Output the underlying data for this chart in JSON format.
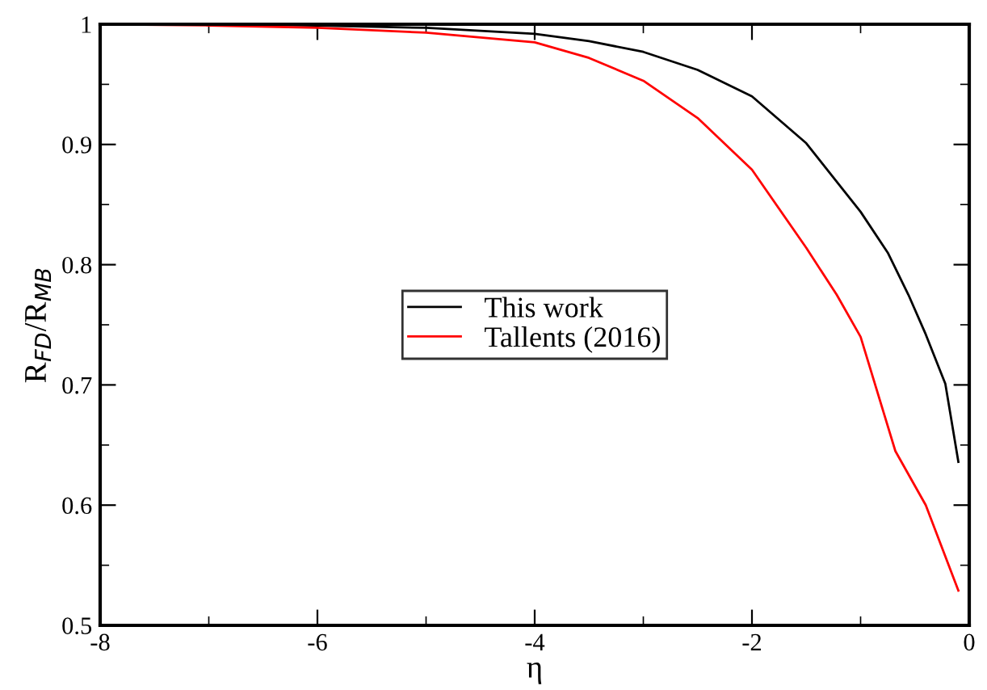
{
  "chart_data": {
    "type": "line",
    "xlabel": "η",
    "ylabel": "R$_{FD}$/R$_{MB}$",
    "xlim": [
      -8,
      0
    ],
    "ylim": [
      0.5,
      1
    ],
    "xticks": [
      -8,
      -6,
      -4,
      -2,
      0
    ],
    "yticks": [
      0.5,
      0.6,
      0.7,
      0.8,
      0.9,
      1
    ],
    "grid": false,
    "legend": "center",
    "marker": "none",
    "line_style": "solid",
    "series": [
      {
        "name": "This work",
        "color": "#000000",
        "x": [
          -8,
          -7,
          -6,
          -5,
          -4,
          -3.5,
          -3,
          -2.5,
          -2,
          -1.5,
          -1,
          -0.75,
          -0.56,
          -0.4,
          -0.22,
          -0.1
        ],
        "values": [
          1.0,
          1.0,
          0.999,
          0.997,
          0.992,
          0.986,
          0.977,
          0.962,
          0.94,
          0.901,
          0.844,
          0.81,
          0.775,
          0.742,
          0.701,
          0.636
        ]
      },
      {
        "name": "Tallents (2016)",
        "color": "#ff0000",
        "x": [
          -8,
          -7,
          -6,
          -5,
          -4,
          -3.5,
          -3,
          -2.5,
          -2,
          -1.5,
          -1.22,
          -1,
          -0.68,
          -0.4,
          -0.1
        ],
        "values": [
          1.0,
          0.999,
          0.997,
          0.993,
          0.985,
          0.972,
          0.953,
          0.922,
          0.879,
          0.814,
          0.775,
          0.74,
          0.645,
          0.6,
          0.529
        ]
      }
    ]
  }
}
